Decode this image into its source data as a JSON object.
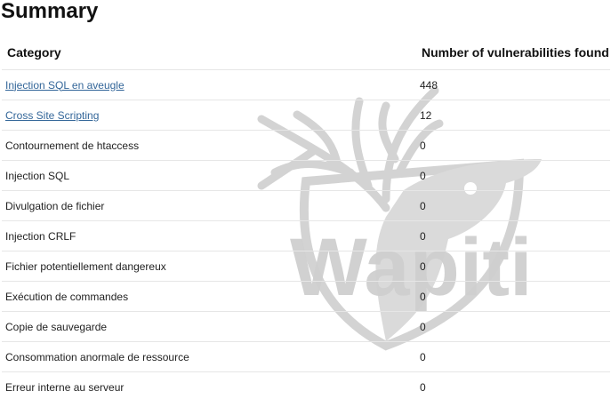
{
  "title": "Summary",
  "table": {
    "headers": {
      "category": "Category",
      "count": "Number of vulnerabilities found"
    },
    "rows": [
      {
        "category": "Injection SQL en aveugle",
        "count": "448",
        "link": true
      },
      {
        "category": "Cross Site Scripting",
        "count": "12",
        "link": true
      },
      {
        "category": "Contournement de htaccess",
        "count": "0",
        "link": false
      },
      {
        "category": "Injection SQL",
        "count": "0",
        "link": false
      },
      {
        "category": "Divulgation de fichier",
        "count": "0",
        "link": false
      },
      {
        "category": "Injection CRLF",
        "count": "0",
        "link": false
      },
      {
        "category": "Fichier potentiellement dangereux",
        "count": "0",
        "link": false
      },
      {
        "category": "Exécution de commandes",
        "count": "0",
        "link": false
      },
      {
        "category": "Copie de sauvegarde",
        "count": "0",
        "link": false
      },
      {
        "category": "Consommation anormale de ressource",
        "count": "0",
        "link": false
      },
      {
        "category": "Erreur interne au serveur",
        "count": "0",
        "link": false
      }
    ]
  },
  "watermark": {
    "text": "Wapiti",
    "icon": "elk-head-logo",
    "color": "#cfcfcf"
  }
}
